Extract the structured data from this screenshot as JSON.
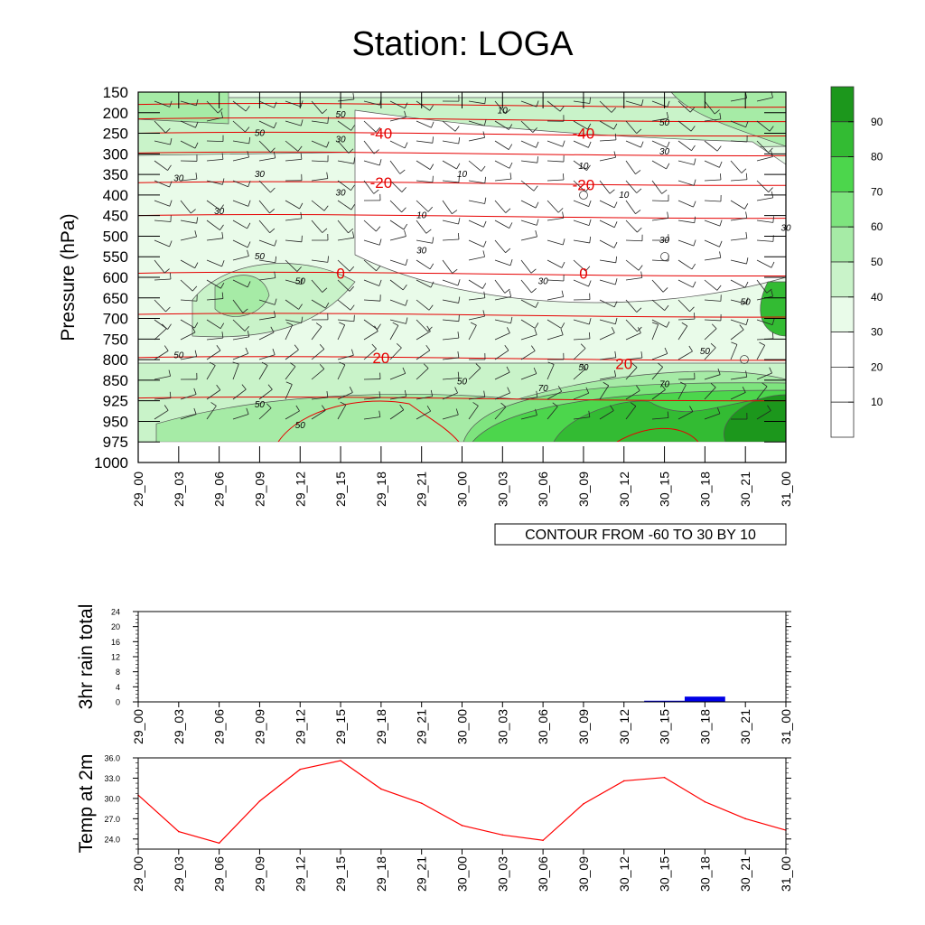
{
  "title": "Station: LOGA",
  "colors": {
    "accent_green": "#32b332",
    "temp_line": "#ff0000",
    "rain_bar": "#0000e6",
    "isotherm": "#e60000"
  },
  "chart_data": [
    {
      "type": "heatmap",
      "name": "pressure-time cross section",
      "ylabel": "Pressure (hPa)",
      "y_scale": "log",
      "y_reversed": true,
      "yticks": [
        "150",
        "200",
        "250",
        "300",
        "350",
        "400",
        "450",
        "500",
        "550",
        "600",
        "650",
        "700",
        "750",
        "800",
        "850",
        "925",
        "950",
        "975",
        "1000"
      ],
      "x_ticks": [
        "29_00",
        "29_03",
        "29_06",
        "29_09",
        "29_12",
        "29_15",
        "29_18",
        "29_21",
        "30_00",
        "30_03",
        "30_06",
        "30_09",
        "30_12",
        "30_15",
        "30_18",
        "30_21",
        "31_00"
      ],
      "contour_note": "CONTOUR FROM -60 TO 30 BY 10",
      "colorbar": {
        "labels": [
          "10",
          "20",
          "30",
          "40",
          "50",
          "60",
          "70",
          "80",
          "90"
        ],
        "colors": [
          "#ffffff",
          "#ffffff",
          "#ffffff",
          "#e9fbe9",
          "#c9f3c9",
          "#a6eba6",
          "#7ee47e",
          "#4cd64c",
          "#33bb33",
          "#1c971c"
        ]
      },
      "isotherm_labels": [
        {
          "text": "-40",
          "time": "29_18",
          "pressure": 250
        },
        {
          "text": "-40",
          "time": "30_09",
          "pressure": 250
        },
        {
          "text": "-20",
          "time": "29_18",
          "pressure": 370
        },
        {
          "text": "-20",
          "time": "30_09",
          "pressure": 375
        },
        {
          "text": "0",
          "time": "29_15",
          "pressure": 590
        },
        {
          "text": "0",
          "time": "30_09",
          "pressure": 590
        },
        {
          "text": "20",
          "time": "29_18",
          "pressure": 795
        },
        {
          "text": "20",
          "time": "30_12",
          "pressure": 810
        }
      ],
      "contour_labels": [
        {
          "text": "50",
          "time": "29_15",
          "pressure": 205
        },
        {
          "text": "10",
          "time": "30_03",
          "pressure": 195
        },
        {
          "text": "50",
          "time": "30_15",
          "pressure": 225
        },
        {
          "text": "50",
          "time": "29_09",
          "pressure": 250
        },
        {
          "text": "30",
          "time": "29_15",
          "pressure": 265
        },
        {
          "text": "30",
          "time": "30_15",
          "pressure": 295
        },
        {
          "text": "10",
          "time": "30_09",
          "pressure": 330
        },
        {
          "text": "30",
          "time": "29_03",
          "pressure": 360
        },
        {
          "text": "30",
          "time": "29_09",
          "pressure": 350
        },
        {
          "text": "10",
          "time": "30_00",
          "pressure": 350
        },
        {
          "text": "30",
          "time": "29_15",
          "pressure": 395
        },
        {
          "text": "10",
          "time": "30_12",
          "pressure": 400
        },
        {
          "text": "30",
          "time": "29_06",
          "pressure": 440
        },
        {
          "text": "10",
          "time": "29_21",
          "pressure": 450
        },
        {
          "text": "30",
          "time": "31_00",
          "pressure": 480
        },
        {
          "text": "30",
          "time": "30_15",
          "pressure": 510
        },
        {
          "text": "30",
          "time": "29_21",
          "pressure": 535
        },
        {
          "text": "50",
          "time": "29_09",
          "pressure": 550
        },
        {
          "text": "50",
          "time": "29_12",
          "pressure": 610
        },
        {
          "text": "30",
          "time": "30_06",
          "pressure": 610
        },
        {
          "text": "50",
          "time": "30_21",
          "pressure": 660
        },
        {
          "text": "50",
          "time": "29_03",
          "pressure": 790
        },
        {
          "text": "50",
          "time": "30_18",
          "pressure": 780
        },
        {
          "text": "50",
          "time": "30_09",
          "pressure": 820
        },
        {
          "text": "50",
          "time": "30_00",
          "pressure": 855
        },
        {
          "text": "70",
          "time": "30_06",
          "pressure": 880
        },
        {
          "text": "70",
          "time": "30_15",
          "pressure": 865
        },
        {
          "text": "50",
          "time": "29_09",
          "pressure": 930
        },
        {
          "text": "50",
          "time": "29_12",
          "pressure": 955
        }
      ]
    },
    {
      "type": "bar",
      "name": "3hr rain total",
      "ylabel": "3hr rain total",
      "ylim": [
        0,
        24
      ],
      "yticks": [
        "0",
        "4",
        "8",
        "12",
        "16",
        "20",
        "24"
      ],
      "categories": [
        "29_00",
        "29_03",
        "29_06",
        "29_09",
        "29_12",
        "29_15",
        "29_18",
        "29_21",
        "30_00",
        "30_03",
        "30_06",
        "30_09",
        "30_12",
        "30_15",
        "30_18",
        "30_21",
        "31_00"
      ],
      "values": [
        0,
        0,
        0,
        0,
        0,
        0,
        0,
        0,
        0,
        0,
        0,
        0,
        0,
        0.3,
        1.4,
        0,
        0
      ]
    },
    {
      "type": "line",
      "name": "Temp at 2m",
      "ylabel": "Temp at 2m",
      "ylim": [
        22.5,
        36.0
      ],
      "yticks": [
        "24.0",
        "27.0",
        "30.0",
        "33.0",
        "36.0"
      ],
      "categories": [
        "29_00",
        "29_03",
        "29_06",
        "29_09",
        "29_12",
        "29_15",
        "29_18",
        "29_21",
        "30_00",
        "30_03",
        "30_06",
        "30_09",
        "30_12",
        "30_15",
        "30_18",
        "30_21",
        "31_00"
      ],
      "values": [
        30.5,
        25.1,
        23.4,
        29.6,
        34.3,
        35.6,
        31.4,
        29.3,
        26.0,
        24.6,
        23.8,
        29.2,
        32.6,
        33.1,
        29.5,
        27.0,
        25.3
      ]
    }
  ]
}
